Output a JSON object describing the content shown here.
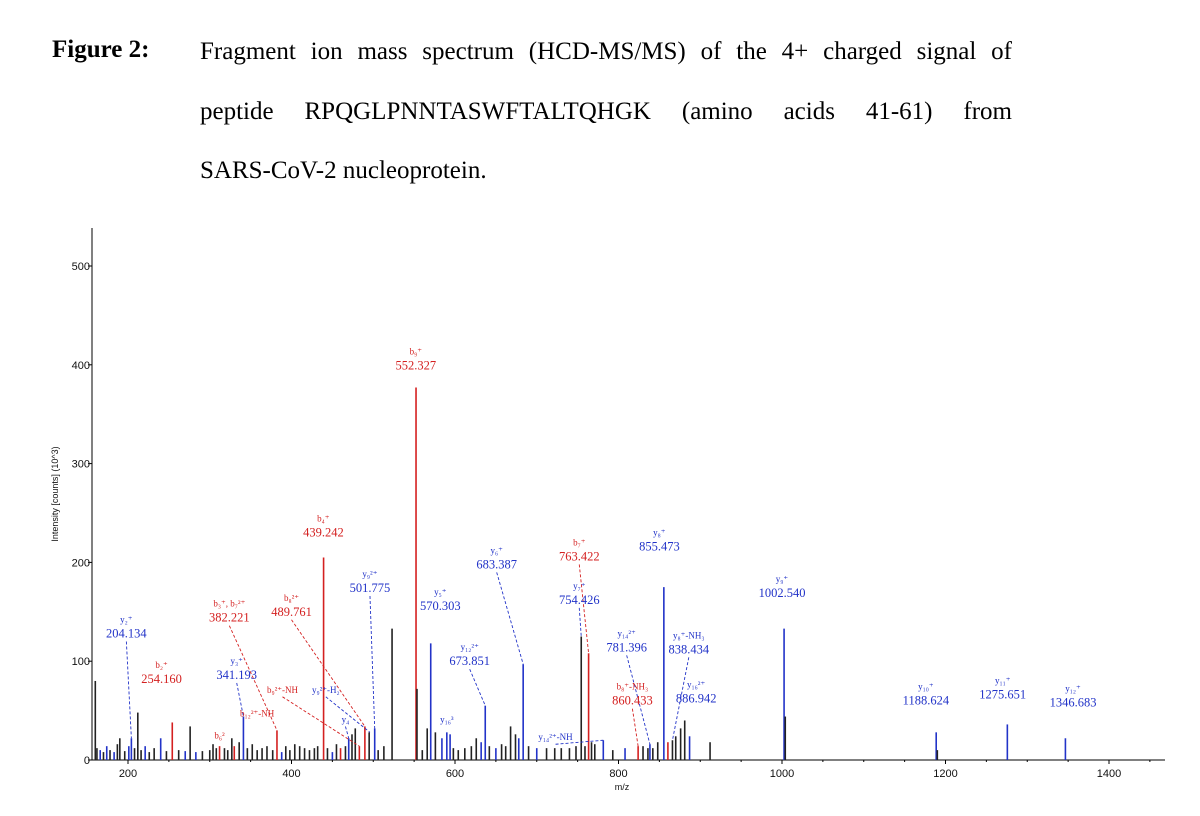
{
  "caption": {
    "label": "Figure 2:",
    "line1": "Fragment ion mass spectrum (HCD-MS/MS) of the 4+ charged signal of",
    "line2": "peptide RPQGLPNNTASWFTALTQHGK (amino acids 41-61) from",
    "line3": "SARS-CoV-2 nucleoprotein."
  },
  "chart_data": {
    "type": "bar",
    "title": "",
    "xlabel": "m/z",
    "ylabel": "Intensity [counts] (10^3)",
    "xlim": [
      158,
      1470
    ],
    "ylim": [
      0,
      540
    ],
    "x_ticks": [
      200,
      400,
      600,
      800,
      1000,
      1200,
      1400
    ],
    "y_ticks": [
      0,
      100,
      200,
      300,
      400,
      500
    ],
    "colors": {
      "b_ions": "#d42020",
      "y_ions": "#2233c8",
      "unassigned": "#222222"
    },
    "peaks": [
      {
        "mz": 160,
        "i": 80,
        "t": "k"
      },
      {
        "mz": 162,
        "i": 12,
        "t": "k"
      },
      {
        "mz": 166,
        "i": 10,
        "t": "b"
      },
      {
        "mz": 170,
        "i": 8,
        "t": "k"
      },
      {
        "mz": 174,
        "i": 14,
        "t": "b"
      },
      {
        "mz": 178,
        "i": 10,
        "t": "k"
      },
      {
        "mz": 183,
        "i": 8,
        "t": "b"
      },
      {
        "mz": 187,
        "i": 16,
        "t": "k"
      },
      {
        "mz": 190,
        "i": 22,
        "t": "k"
      },
      {
        "mz": 196,
        "i": 9,
        "t": "k"
      },
      {
        "mz": 201,
        "i": 14,
        "t": "b"
      },
      {
        "mz": 204.134,
        "i": 22,
        "t": "b"
      },
      {
        "mz": 208,
        "i": 12,
        "t": "k"
      },
      {
        "mz": 212,
        "i": 48,
        "t": "k"
      },
      {
        "mz": 216,
        "i": 10,
        "t": "k"
      },
      {
        "mz": 221,
        "i": 14,
        "t": "b"
      },
      {
        "mz": 226,
        "i": 8,
        "t": "k"
      },
      {
        "mz": 232,
        "i": 12,
        "t": "k"
      },
      {
        "mz": 240,
        "i": 22,
        "t": "b"
      },
      {
        "mz": 247,
        "i": 9,
        "t": "k"
      },
      {
        "mz": 254.16,
        "i": 38,
        "t": "r"
      },
      {
        "mz": 262,
        "i": 10,
        "t": "k"
      },
      {
        "mz": 270,
        "i": 9,
        "t": "b"
      },
      {
        "mz": 276,
        "i": 34,
        "t": "k"
      },
      {
        "mz": 283,
        "i": 8,
        "t": "b"
      },
      {
        "mz": 291,
        "i": 9,
        "t": "k"
      },
      {
        "mz": 300,
        "i": 10,
        "t": "k"
      },
      {
        "mz": 304,
        "i": 16,
        "t": "k"
      },
      {
        "mz": 308,
        "i": 12,
        "t": "k"
      },
      {
        "mz": 312,
        "i": 14,
        "t": "r"
      },
      {
        "mz": 318,
        "i": 12,
        "t": "k"
      },
      {
        "mz": 322,
        "i": 10,
        "t": "k"
      },
      {
        "mz": 327,
        "i": 22,
        "t": "k"
      },
      {
        "mz": 330,
        "i": 14,
        "t": "r"
      },
      {
        "mz": 336,
        "i": 18,
        "t": "k"
      },
      {
        "mz": 341.193,
        "i": 44,
        "t": "b"
      },
      {
        "mz": 346,
        "i": 12,
        "t": "k"
      },
      {
        "mz": 352,
        "i": 16,
        "t": "k"
      },
      {
        "mz": 358,
        "i": 10,
        "t": "k"
      },
      {
        "mz": 364,
        "i": 12,
        "t": "k"
      },
      {
        "mz": 370,
        "i": 14,
        "t": "k"
      },
      {
        "mz": 377,
        "i": 10,
        "t": "k"
      },
      {
        "mz": 382.221,
        "i": 30,
        "t": "r"
      },
      {
        "mz": 388,
        "i": 8,
        "t": "b"
      },
      {
        "mz": 393,
        "i": 14,
        "t": "k"
      },
      {
        "mz": 398,
        "i": 10,
        "t": "k"
      },
      {
        "mz": 404,
        "i": 16,
        "t": "k"
      },
      {
        "mz": 410,
        "i": 14,
        "t": "k"
      },
      {
        "mz": 416,
        "i": 12,
        "t": "k"
      },
      {
        "mz": 422,
        "i": 10,
        "t": "k"
      },
      {
        "mz": 428,
        "i": 12,
        "t": "k"
      },
      {
        "mz": 432,
        "i": 14,
        "t": "k"
      },
      {
        "mz": 439.242,
        "i": 205,
        "t": "r"
      },
      {
        "mz": 444,
        "i": 12,
        "t": "k"
      },
      {
        "mz": 450,
        "i": 8,
        "t": "b"
      },
      {
        "mz": 455,
        "i": 16,
        "t": "k"
      },
      {
        "mz": 460,
        "i": 12,
        "t": "r"
      },
      {
        "mz": 466,
        "i": 14,
        "t": "k"
      },
      {
        "mz": 470,
        "i": 22,
        "t": "b"
      },
      {
        "mz": 474,
        "i": 26,
        "t": "k"
      },
      {
        "mz": 478,
        "i": 32,
        "t": "k"
      },
      {
        "mz": 483,
        "i": 14,
        "t": "r"
      },
      {
        "mz": 489.761,
        "i": 34,
        "t": "r"
      },
      {
        "mz": 495,
        "i": 28,
        "t": "k"
      },
      {
        "mz": 501.775,
        "i": 32,
        "t": "b"
      },
      {
        "mz": 506,
        "i": 10,
        "t": "k"
      },
      {
        "mz": 513,
        "i": 14,
        "t": "k"
      },
      {
        "mz": 523,
        "i": 133,
        "t": "k"
      },
      {
        "mz": 552.327,
        "i": 377,
        "t": "r"
      },
      {
        "mz": 553.5,
        "i": 72,
        "t": "k"
      },
      {
        "mz": 560,
        "i": 10,
        "t": "k"
      },
      {
        "mz": 566,
        "i": 32,
        "t": "k"
      },
      {
        "mz": 570.303,
        "i": 118,
        "t": "b"
      },
      {
        "mz": 576,
        "i": 28,
        "t": "k"
      },
      {
        "mz": 584,
        "i": 22,
        "t": "b"
      },
      {
        "mz": 590,
        "i": 28,
        "t": "b"
      },
      {
        "mz": 594,
        "i": 26,
        "t": "b"
      },
      {
        "mz": 598,
        "i": 12,
        "t": "k"
      },
      {
        "mz": 604,
        "i": 10,
        "t": "k"
      },
      {
        "mz": 612,
        "i": 12,
        "t": "k"
      },
      {
        "mz": 620,
        "i": 14,
        "t": "k"
      },
      {
        "mz": 626,
        "i": 22,
        "t": "k"
      },
      {
        "mz": 632,
        "i": 18,
        "t": "b"
      },
      {
        "mz": 637,
        "i": 55,
        "t": "b"
      },
      {
        "mz": 642,
        "i": 14,
        "t": "k"
      },
      {
        "mz": 650,
        "i": 12,
        "t": "b"
      },
      {
        "mz": 657,
        "i": 16,
        "t": "k"
      },
      {
        "mz": 662,
        "i": 14,
        "t": "k"
      },
      {
        "mz": 668,
        "i": 34,
        "t": "k"
      },
      {
        "mz": 674,
        "i": 26,
        "t": "k"
      },
      {
        "mz": 678,
        "i": 22,
        "t": "b"
      },
      {
        "mz": 683.387,
        "i": 97,
        "t": "b"
      },
      {
        "mz": 690,
        "i": 14,
        "t": "k"
      },
      {
        "mz": 700,
        "i": 12,
        "t": "b"
      },
      {
        "mz": 712,
        "i": 12,
        "t": "k"
      },
      {
        "mz": 722,
        "i": 12,
        "t": "k"
      },
      {
        "mz": 730,
        "i": 12,
        "t": "k"
      },
      {
        "mz": 740,
        "i": 12,
        "t": "k"
      },
      {
        "mz": 748,
        "i": 14,
        "t": "k"
      },
      {
        "mz": 754.426,
        "i": 125,
        "t": "k"
      },
      {
        "mz": 759,
        "i": 14,
        "t": "k"
      },
      {
        "mz": 763.422,
        "i": 108,
        "t": "r"
      },
      {
        "mz": 767,
        "i": 18,
        "t": "k"
      },
      {
        "mz": 771,
        "i": 16,
        "t": "k"
      },
      {
        "mz": 781.396,
        "i": 20,
        "t": "b"
      },
      {
        "mz": 793,
        "i": 10,
        "t": "k"
      },
      {
        "mz": 808,
        "i": 12,
        "t": "b"
      },
      {
        "mz": 824,
        "i": 14,
        "t": "r"
      },
      {
        "mz": 830,
        "i": 14,
        "t": "k"
      },
      {
        "mz": 836,
        "i": 12,
        "t": "k"
      },
      {
        "mz": 838.434,
        "i": 16,
        "t": "b"
      },
      {
        "mz": 842,
        "i": 12,
        "t": "k"
      },
      {
        "mz": 848,
        "i": 18,
        "t": "k"
      },
      {
        "mz": 855.473,
        "i": 175,
        "t": "b"
      },
      {
        "mz": 860.433,
        "i": 18,
        "t": "r"
      },
      {
        "mz": 866,
        "i": 20,
        "t": "k"
      },
      {
        "mz": 870,
        "i": 24,
        "t": "k"
      },
      {
        "mz": 876,
        "i": 32,
        "t": "k"
      },
      {
        "mz": 881,
        "i": 40,
        "t": "k"
      },
      {
        "mz": 886.942,
        "i": 24,
        "t": "b"
      },
      {
        "mz": 912,
        "i": 18,
        "t": "k"
      },
      {
        "mz": 1002.54,
        "i": 133,
        "t": "b"
      },
      {
        "mz": 1004,
        "i": 44,
        "t": "k"
      },
      {
        "mz": 1188.624,
        "i": 28,
        "t": "b"
      },
      {
        "mz": 1190,
        "i": 10,
        "t": "k"
      },
      {
        "mz": 1275.651,
        "i": 36,
        "t": "b"
      },
      {
        "mz": 1346.683,
        "i": 22,
        "t": "b"
      }
    ],
    "annotations": [
      {
        "id": "b9",
        "ion": "b₉⁺",
        "mz": "552.327",
        "color": "red",
        "lx": 552,
        "ly": 395,
        "peak_mz": 552.327,
        "peak_i": 377
      },
      {
        "id": "b4",
        "ion": "b₄⁺",
        "mz": "439.242",
        "color": "red",
        "lx": 439,
        "ly": 226,
        "peak_mz": 439.242,
        "peak_i": 205
      },
      {
        "id": "y9dbl",
        "ion": "y₉²⁺",
        "mz": "501.775",
        "color": "blue",
        "lx": 496,
        "ly": 170,
        "peak_mz": 501.775,
        "peak_i": 32,
        "dashed": true
      },
      {
        "id": "b8dbl",
        "ion": "b₈²⁺",
        "mz": "489.761",
        "color": "red",
        "lx": 400,
        "ly": 146,
        "peak_mz": 489.761,
        "peak_i": 34,
        "dashed": true
      },
      {
        "id": "b3b7",
        "ion": "b₃⁺, b₇²⁺",
        "mz": "382.221",
        "color": "red",
        "lx": 324,
        "ly": 140,
        "peak_mz": 382.221,
        "peak_i": 30,
        "dashed": true
      },
      {
        "id": "y2",
        "ion": "y₂⁺",
        "mz": "204.134",
        "color": "blue",
        "lx": 198,
        "ly": 124,
        "peak_mz": 204.134,
        "peak_i": 22,
        "dashed": true
      },
      {
        "id": "b2",
        "ion": "b₂⁺",
        "mz": "254.160",
        "color": "red",
        "lx": 241,
        "ly": 78,
        "peak_mz": 254.16,
        "peak_i": 38
      },
      {
        "id": "y3",
        "ion": "y₃⁺",
        "mz": "341.193",
        "color": "blue",
        "lx": 333,
        "ly": 82,
        "peak_mz": 341.193,
        "peak_i": 44,
        "dashed": true
      },
      {
        "id": "b9nh",
        "ion": "b₉²⁺-NH",
        "mz": "",
        "color": "red",
        "lx": 389,
        "ly": 68,
        "peak_mz": 483,
        "peak_i": 14,
        "dashed": true
      },
      {
        "id": "y9h2",
        "ion": "y₉²⁺-H₂",
        "mz": "",
        "color": "blue",
        "lx": 442,
        "ly": 68,
        "peak_mz": 496,
        "peak_i": 28,
        "dashed": true
      },
      {
        "id": "b12nh",
        "ion": "b₁₂²⁺-NH",
        "mz": "",
        "color": "red",
        "lx": 358,
        "ly": 44,
        "peak_mz": 330,
        "peak_i": 14
      },
      {
        "id": "y4",
        "ion": "y₄",
        "mz": "",
        "color": "blue",
        "lx": 466,
        "ly": 38,
        "peak_mz": 470,
        "peak_i": 22,
        "dashed": true
      },
      {
        "id": "b6dbl",
        "ion": "b₆²",
        "mz": "",
        "color": "red",
        "lx": 312,
        "ly": 22,
        "peak_mz": 312,
        "peak_i": 14
      },
      {
        "id": "y5",
        "ion": "y₅⁺",
        "mz": "570.303",
        "color": "blue",
        "lx": 582,
        "ly": 152,
        "peak_mz": 570.303,
        "peak_i": 118
      },
      {
        "id": "y6",
        "ion": "y₆⁺",
        "mz": "683.387",
        "color": "blue",
        "lx": 651,
        "ly": 194,
        "peak_mz": 683.387,
        "peak_i": 97,
        "dashed": true
      },
      {
        "id": "y12dbl",
        "ion": "y₁₂²⁺",
        "mz": "673.851",
        "color": "blue",
        "lx": 618,
        "ly": 96,
        "peak_mz": 637,
        "peak_i": 55,
        "dashed": true
      },
      {
        "id": "y16t",
        "ion": "y₁₆³",
        "mz": "",
        "color": "blue",
        "lx": 590,
        "ly": 38,
        "peak_mz": 590,
        "peak_i": 28
      },
      {
        "id": "y14nh",
        "ion": "y₁₄²⁺-NH",
        "mz": "",
        "color": "blue",
        "lx": 723,
        "ly": 20,
        "peak_mz": 781.396,
        "peak_i": 20,
        "dashed": true
      },
      {
        "id": "y7",
        "ion": "y₇⁺",
        "mz": "754.426",
        "color": "blue",
        "lx": 752,
        "ly": 158,
        "peak_mz": 754.426,
        "peak_i": 125,
        "dashed": true
      },
      {
        "id": "b7",
        "ion": "b₇⁺",
        "mz": "763.422",
        "color": "red",
        "lx": 752,
        "ly": 202,
        "peak_mz": 763.422,
        "peak_i": 108,
        "dashed": true
      },
      {
        "id": "y8",
        "ion": "y₈⁺",
        "mz": "855.473",
        "color": "blue",
        "lx": 850,
        "ly": 212,
        "peak_mz": 855.473,
        "peak_i": 175
      },
      {
        "id": "y14dbl",
        "ion": "y₁₄²⁺",
        "mz": "781.396",
        "color": "blue",
        "lx": 810,
        "ly": 110,
        "peak_mz": 838.434,
        "peak_i": 16,
        "dashed": true
      },
      {
        "id": "y8nh3",
        "ion": "y₈⁺-NH₃",
        "mz": "838.434",
        "color": "blue",
        "lx": 886,
        "ly": 108,
        "peak_mz": 866,
        "peak_i": 20,
        "dashed": true
      },
      {
        "id": "b8nh3",
        "ion": "b₈⁺-NH₃",
        "mz": "860.433",
        "color": "red",
        "lx": 817,
        "ly": 56,
        "peak_mz": 824,
        "peak_i": 14,
        "dashed": true
      },
      {
        "id": "y16dbl",
        "ion": "y₁₆²⁺",
        "mz": "886.942",
        "color": "blue",
        "lx": 895,
        "ly": 58,
        "peak_mz": 886.942,
        "peak_i": 24
      },
      {
        "id": "y9",
        "ion": "y₉⁺",
        "mz": "1002.540",
        "color": "blue",
        "lx": 1000,
        "ly": 165,
        "peak_mz": 1002.54,
        "peak_i": 133
      },
      {
        "id": "y10",
        "ion": "y₁₀⁺",
        "mz": "1188.624",
        "color": "blue",
        "lx": 1176,
        "ly": 56,
        "peak_mz": 1188.624,
        "peak_i": 28
      },
      {
        "id": "y11",
        "ion": "y₁₁⁺",
        "mz": "1275.651",
        "color": "blue",
        "lx": 1270,
        "ly": 62,
        "peak_mz": 1275.651,
        "peak_i": 36
      },
      {
        "id": "y12",
        "ion": "y₁₂⁺",
        "mz": "1346.683",
        "color": "blue",
        "lx": 1356,
        "ly": 54,
        "peak_mz": 1346.683,
        "peak_i": 22
      }
    ]
  }
}
